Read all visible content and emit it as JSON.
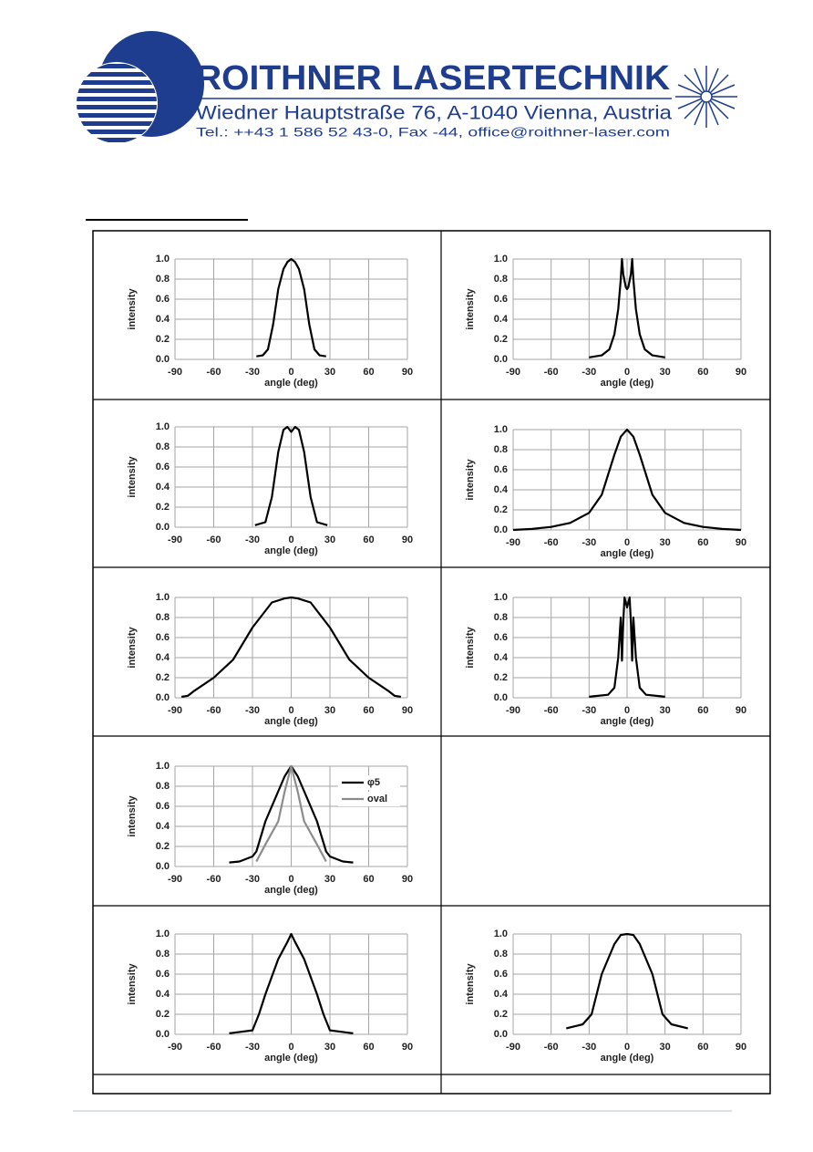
{
  "header": {
    "company": "ROITHNER LASERTECHNIK",
    "address": "Wiedner Hauptstraße 76, A-1040 Vienna, Austria",
    "contact": "Tel.: ++43 1 586 52 43-0, Fax -44, office@roithner-laser.com"
  },
  "chart_data": [
    {
      "type": "line",
      "xlabel": "angle (deg)",
      "ylabel": "intensity",
      "xlim": [
        -90,
        90
      ],
      "xticks": [
        -90,
        -60,
        -30,
        0,
        30,
        60,
        90
      ],
      "ylim": [
        0,
        1
      ],
      "yticks": [
        {
          "value": 0,
          "label": "0.0"
        },
        {
          "value": 0.2,
          "label": "0.2"
        },
        {
          "value": 0.4,
          "label": "0.4"
        },
        {
          "value": 0.6,
          "label": "0.6"
        },
        {
          "value": 0.8,
          "label": "0.8"
        },
        {
          "value": 1,
          "label": "1.0"
        }
      ],
      "grid": true,
      "x": [
        -27,
        -22,
        -18,
        -14,
        -10,
        -6,
        -3,
        0,
        3,
        6,
        10,
        14,
        18,
        22,
        27
      ],
      "series": [
        {
          "color": "#000000",
          "values": [
            0.03,
            0.04,
            0.1,
            0.35,
            0.7,
            0.9,
            0.97,
            1.0,
            0.97,
            0.9,
            0.7,
            0.35,
            0.1,
            0.04,
            0.03
          ]
        }
      ]
    },
    {
      "type": "line",
      "xlabel": "angle (deg)",
      "ylabel": "intensity",
      "xlim": [
        -90,
        90
      ],
      "xticks": [
        -90,
        -60,
        -30,
        0,
        30,
        60,
        90
      ],
      "ylim": [
        0,
        1
      ],
      "yticks": [
        {
          "value": 0,
          "label": "0.0"
        },
        {
          "value": 0.2,
          "label": "0.2"
        },
        {
          "value": 0.4,
          "label": "0.4"
        },
        {
          "value": 0.6,
          "label": "0.6"
        },
        {
          "value": 0.8,
          "label": "0.8"
        },
        {
          "value": 1,
          "label": "1.0"
        }
      ],
      "grid": true,
      "x": [
        -30,
        -20,
        -14,
        -10,
        -7,
        -5,
        -4,
        -3,
        -1,
        0,
        1,
        3,
        4,
        5,
        7,
        10,
        14,
        20,
        30
      ],
      "series": [
        {
          "color": "#000000",
          "values": [
            0.02,
            0.04,
            0.1,
            0.25,
            0.5,
            0.8,
            1.0,
            0.85,
            0.72,
            0.7,
            0.72,
            0.85,
            1.0,
            0.8,
            0.5,
            0.25,
            0.1,
            0.04,
            0.02
          ]
        }
      ]
    },
    {
      "type": "line",
      "xlabel": "angle (deg)",
      "ylabel": "intensity",
      "xlim": [
        -90,
        90
      ],
      "xticks": [
        -90,
        -60,
        -30,
        0,
        30,
        60,
        90
      ],
      "ylim": [
        0,
        1
      ],
      "yticks": [
        {
          "value": 0,
          "label": "0.0"
        },
        {
          "value": 0.2,
          "label": "0.2"
        },
        {
          "value": 0.4,
          "label": "0.4"
        },
        {
          "value": 0.6,
          "label": "0.6"
        },
        {
          "value": 0.8,
          "label": "0.8"
        },
        {
          "value": 1,
          "label": "1.0"
        }
      ],
      "grid": true,
      "x": [
        -28,
        -20,
        -15,
        -10,
        -6,
        -3,
        0,
        3,
        6,
        10,
        15,
        20,
        28
      ],
      "series": [
        {
          "color": "#000000",
          "values": [
            0.02,
            0.05,
            0.3,
            0.75,
            0.97,
            1.0,
            0.95,
            1.0,
            0.97,
            0.75,
            0.3,
            0.05,
            0.02
          ]
        }
      ]
    },
    {
      "type": "line",
      "xlabel": "angle (deg)",
      "ylabel": "intensity",
      "xlim": [
        -90,
        90
      ],
      "xticks": [
        -90,
        -60,
        -30,
        0,
        30,
        60,
        90
      ],
      "ylim": [
        0,
        1
      ],
      "yticks": [
        {
          "value": 0,
          "label": "0.0"
        },
        {
          "value": 0.2,
          "label": "0.2"
        },
        {
          "value": 0.4,
          "label": "0.4"
        },
        {
          "value": 0.6,
          "label": "0.6"
        },
        {
          "value": 0.8,
          "label": "0.8"
        },
        {
          "value": 1,
          "label": "1.0"
        }
      ],
      "grid": true,
      "x": [
        -90,
        -75,
        -60,
        -45,
        -30,
        -20,
        -10,
        -5,
        0,
        5,
        10,
        20,
        30,
        45,
        60,
        75,
        90
      ],
      "series": [
        {
          "color": "#000000",
          "values": [
            0,
            0.01,
            0.03,
            0.07,
            0.17,
            0.35,
            0.75,
            0.93,
            1.0,
            0.93,
            0.75,
            0.35,
            0.17,
            0.07,
            0.03,
            0.01,
            0
          ]
        }
      ]
    },
    {
      "type": "line",
      "xlabel": "angle (deg)",
      "ylabel": "intensity",
      "xlim": [
        -90,
        90
      ],
      "xticks": [
        -90,
        -60,
        -30,
        0,
        30,
        60,
        90
      ],
      "ylim": [
        0,
        1
      ],
      "yticks": [
        {
          "value": 0,
          "label": "0.0"
        },
        {
          "value": 0.2,
          "label": "0.2"
        },
        {
          "value": 0.4,
          "label": "0.4"
        },
        {
          "value": 0.6,
          "label": "0.6"
        },
        {
          "value": 0.8,
          "label": "0.8"
        },
        {
          "value": 1,
          "label": "1.0"
        }
      ],
      "grid": true,
      "x": [
        -85,
        -80,
        -75,
        -60,
        -45,
        -30,
        -15,
        -5,
        0,
        5,
        15,
        30,
        45,
        60,
        75,
        80,
        85
      ],
      "series": [
        {
          "color": "#000000",
          "values": [
            0.01,
            0.02,
            0.07,
            0.2,
            0.38,
            0.7,
            0.95,
            0.99,
            1.0,
            0.99,
            0.95,
            0.7,
            0.38,
            0.2,
            0.07,
            0.02,
            0.01
          ]
        }
      ]
    },
    {
      "type": "line",
      "xlabel": "angle (deg)",
      "ylabel": "intensity",
      "xlim": [
        -90,
        90
      ],
      "xticks": [
        -90,
        -60,
        -30,
        0,
        30,
        60,
        90
      ],
      "ylim": [
        0,
        1
      ],
      "yticks": [
        {
          "value": 0,
          "label": "0.0"
        },
        {
          "value": 0.2,
          "label": "0.2"
        },
        {
          "value": 0.4,
          "label": "0.4"
        },
        {
          "value": 0.6,
          "label": "0.6"
        },
        {
          "value": 0.8,
          "label": "0.8"
        },
        {
          "value": 1,
          "label": "1.0"
        }
      ],
      "grid": true,
      "x": [
        -30,
        -15,
        -10,
        -7,
        -5,
        -4,
        -3,
        -2,
        -1,
        0,
        1,
        2,
        3,
        4,
        5,
        7,
        10,
        15,
        30
      ],
      "series": [
        {
          "color": "#000000",
          "values": [
            0.01,
            0.03,
            0.1,
            0.4,
            0.8,
            0.37,
            0.75,
            1.0,
            0.95,
            0.9,
            0.95,
            1.0,
            0.75,
            0.37,
            0.8,
            0.4,
            0.1,
            0.03,
            0.01
          ]
        }
      ]
    },
    {
      "type": "line",
      "xlabel": "angle (deg)",
      "ylabel": "intensity",
      "xlim": [
        -90,
        90
      ],
      "xticks": [
        -90,
        -60,
        -30,
        0,
        30,
        60,
        90
      ],
      "ylim": [
        0,
        1
      ],
      "yticks": [
        {
          "value": 0,
          "label": "0.0"
        },
        {
          "value": 0.2,
          "label": "0.2"
        },
        {
          "value": 0.4,
          "label": "0.4"
        },
        {
          "value": 0.6,
          "label": "0.6"
        },
        {
          "value": 0.8,
          "label": "0.8"
        },
        {
          "value": 1,
          "label": "1.0"
        }
      ],
      "grid": true,
      "legend": "upper right",
      "x": [
        -48,
        -40,
        -30,
        -27,
        -20,
        -10,
        -5,
        0,
        5,
        10,
        20,
        27,
        30,
        40,
        48
      ],
      "series": [
        {
          "name": "φ5",
          "color": "#000000",
          "values": [
            0.04,
            0.05,
            0.1,
            0.15,
            0.45,
            0.75,
            0.9,
            1.0,
            0.9,
            0.75,
            0.45,
            0.15,
            0.1,
            0.05,
            0.04
          ]
        },
        {
          "name": "oval",
          "color": "#8c8c8c",
          "values": [
            null,
            null,
            null,
            0.05,
            0.22,
            0.45,
            0.75,
            1.0,
            0.75,
            0.45,
            0.22,
            0.05,
            null,
            null,
            null
          ]
        }
      ]
    },
    {
      "type": "line",
      "xlabel": "angle (deg)",
      "ylabel": "intensity",
      "xlim": [
        -90,
        90
      ],
      "xticks": [
        -90,
        -60,
        -30,
        0,
        30,
        60,
        90
      ],
      "ylim": [
        0,
        1
      ],
      "yticks": [
        {
          "value": 0,
          "label": "0.0"
        },
        {
          "value": 0.2,
          "label": "0.2"
        },
        {
          "value": 0.4,
          "label": "0.4"
        },
        {
          "value": 0.6,
          "label": "0.6"
        },
        {
          "value": 0.8,
          "label": "0.8"
        },
        {
          "value": 1,
          "label": "1.0"
        }
      ],
      "grid": true,
      "x": [
        -48,
        -30,
        -25,
        -20,
        -10,
        -3,
        0,
        3,
        10,
        20,
        25,
        30,
        48
      ],
      "series": [
        {
          "color": "#000000",
          "values": [
            0.01,
            0.04,
            0.2,
            0.4,
            0.75,
            0.92,
            1.0,
            0.92,
            0.75,
            0.4,
            0.2,
            0.04,
            0.01
          ]
        }
      ]
    },
    {
      "type": "line",
      "xlabel": "angle (deg)",
      "ylabel": "intensity",
      "xlim": [
        -90,
        90
      ],
      "xticks": [
        -90,
        -60,
        -30,
        0,
        30,
        60,
        90
      ],
      "ylim": [
        0,
        1
      ],
      "yticks": [
        {
          "value": 0,
          "label": "0.0"
        },
        {
          "value": 0.2,
          "label": "0.2"
        },
        {
          "value": 0.4,
          "label": "0.4"
        },
        {
          "value": 0.6,
          "label": "0.6"
        },
        {
          "value": 0.8,
          "label": "0.8"
        },
        {
          "value": 1,
          "label": "1.0"
        }
      ],
      "grid": true,
      "x": [
        -48,
        -35,
        -28,
        -20,
        -10,
        -5,
        0,
        5,
        10,
        20,
        28,
        35,
        48
      ],
      "series": [
        {
          "color": "#000000",
          "values": [
            0.06,
            0.1,
            0.2,
            0.6,
            0.9,
            0.99,
            1.0,
            0.99,
            0.9,
            0.6,
            0.2,
            0.1,
            0.06
          ]
        }
      ]
    }
  ]
}
